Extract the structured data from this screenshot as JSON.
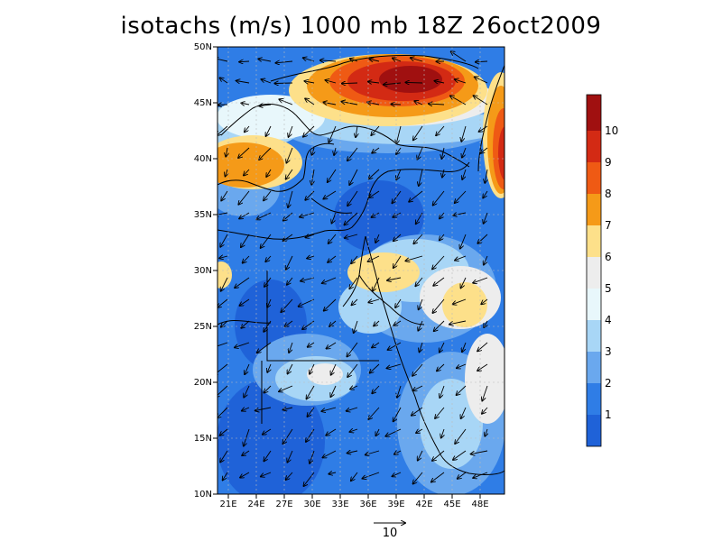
{
  "title": "isotachs (m/s) 1000 mb 18Z 26oct2009",
  "lat_ticks": [
    "10N",
    "15N",
    "20N",
    "25N",
    "30N",
    "35N",
    "40N",
    "45N",
    "50N"
  ],
  "lon_ticks": [
    "21E",
    "24E",
    "27E",
    "30E",
    "33E",
    "36E",
    "39E",
    "42E",
    "45E",
    "48E"
  ],
  "colorbar": {
    "labels": [
      "1",
      "2",
      "3",
      "4",
      "5",
      "6",
      "7",
      "8",
      "9",
      "10"
    ],
    "colors": [
      "#1f62d8",
      "#2f7de6",
      "#6aa8ee",
      "#a8d6f6",
      "#e8f7fb",
      "#ededed",
      "#fde08a",
      "#f59a18",
      "#ef5a14",
      "#d32a14",
      "#a01010"
    ]
  },
  "reference_vector": {
    "label": "10"
  }
}
